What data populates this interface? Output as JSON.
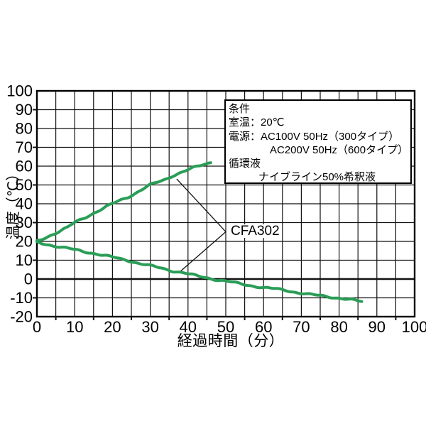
{
  "chart_data": {
    "type": "line",
    "title": "",
    "xlabel": "経過時間（分）",
    "ylabel": "温度（℃）",
    "xlim": [
      0,
      100
    ],
    "ylim": [
      -20,
      100
    ],
    "x_grid_step": 5,
    "y_grid_step": 10,
    "x_tick_labels": [
      0,
      10,
      20,
      30,
      40,
      50,
      60,
      70,
      80,
      90,
      100
    ],
    "y_tick_labels": [
      100,
      90,
      80,
      70,
      60,
      50,
      40,
      30,
      20,
      10,
      0,
      -10,
      -20
    ],
    "x_minor_tick_positions": [
      5,
      15,
      25,
      35,
      45,
      55,
      65,
      75,
      85,
      95
    ],
    "y_minor_tick_positions": [
      90,
      70,
      50,
      30,
      10,
      -10
    ],
    "grid": true,
    "zero_line_bold": true,
    "series_color": "#2a9d57",
    "series": [
      {
        "name": "CFA302 heating curve",
        "points": [
          [
            0,
            20
          ],
          [
            2,
            21.8
          ],
          [
            4,
            23.6
          ],
          [
            6,
            25.4
          ],
          [
            8,
            27.3
          ],
          [
            10,
            30
          ],
          [
            12,
            32
          ],
          [
            14,
            34
          ],
          [
            16,
            36
          ],
          [
            18,
            38
          ],
          [
            20,
            40
          ],
          [
            22,
            41.8
          ],
          [
            24,
            43.5
          ],
          [
            26,
            45.5
          ],
          [
            28,
            47.8
          ],
          [
            30,
            50
          ],
          [
            32,
            51.5
          ],
          [
            34,
            53
          ],
          [
            36,
            55
          ],
          [
            38,
            56.5
          ],
          [
            40,
            58
          ],
          [
            42,
            59.5
          ],
          [
            44,
            60.8
          ],
          [
            46,
            62
          ]
        ]
      },
      {
        "name": "CFA302 cooling curve",
        "points": [
          [
            0,
            19.5
          ],
          [
            3,
            18.3
          ],
          [
            6,
            17
          ],
          [
            9,
            16
          ],
          [
            12,
            14.8
          ],
          [
            15,
            13.7
          ],
          [
            18,
            12.4
          ],
          [
            21,
            11.2
          ],
          [
            24,
            10
          ],
          [
            27,
            8.3
          ],
          [
            30,
            7
          ],
          [
            33,
            5.8
          ],
          [
            36,
            4.3
          ],
          [
            39,
            3.2
          ],
          [
            42,
            1.8
          ],
          [
            45,
            0.7
          ],
          [
            48,
            -0.5
          ],
          [
            51,
            -1.5
          ],
          [
            54,
            -2.6
          ],
          [
            57,
            -3.6
          ],
          [
            60,
            -4.6
          ],
          [
            63,
            -5.2
          ],
          [
            66,
            -6
          ],
          [
            69,
            -7.2
          ],
          [
            72,
            -8.2
          ],
          [
            75,
            -8.8
          ],
          [
            78,
            -9.6
          ],
          [
            81,
            -10.4
          ],
          [
            84,
            -11.3
          ],
          [
            86,
            -12
          ]
        ]
      }
    ],
    "annotation": {
      "label": "CFA302",
      "vertex": [
        50.0,
        25.1
      ],
      "pointer_targets": [
        [
          37.0,
          53.2
        ],
        [
          37.6,
          3.4
        ]
      ]
    }
  },
  "condition_box": {
    "lines": [
      {
        "text": "条件",
        "indent": 0
      },
      {
        "text": "室温：20℃",
        "indent": 0
      },
      {
        "text": "電源：AC100V 50Hz（300タイプ）",
        "indent": 0
      },
      {
        "text": "AC200V 50Hz（600タイプ）",
        "indent": 1
      },
      {
        "text": "循環液",
        "indent": 0
      },
      {
        "text": "ナイブライン50%希釈液",
        "indent": 2
      }
    ]
  }
}
